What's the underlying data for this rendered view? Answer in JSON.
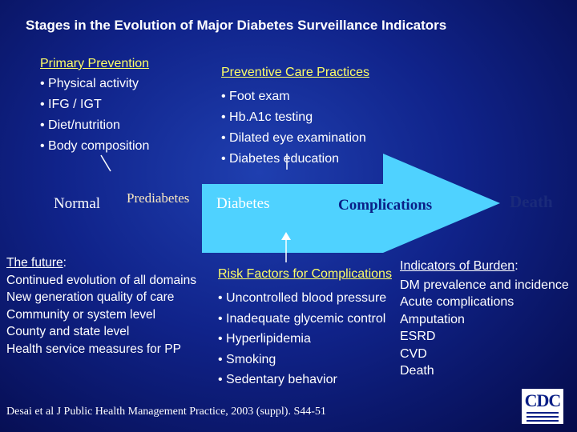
{
  "title": "Stages in the Evolution of Major Diabetes Surveillance Indicators",
  "primary_prevention": {
    "heading": "Primary Prevention",
    "items": [
      "Physical activity",
      "IFG / IGT",
      "Diet/nutrition",
      "Body composition"
    ]
  },
  "preventive_care": {
    "heading": "Preventive Care Practices",
    "items": [
      "Foot exam",
      "Hb.A1c testing",
      "Dilated eye examination",
      "Diabetes education"
    ]
  },
  "stages": {
    "normal": "Normal",
    "prediabetes": "Prediabetes",
    "diabetes": "Diabetes",
    "complications": "Complications",
    "death": "Death"
  },
  "future": {
    "heading": "The future",
    "heading_suffix": ":",
    "items": [
      "Continued evolution of all domains",
      "New generation quality of care",
      "Community or system level",
      "County and state level",
      "Health service measures for PP"
    ]
  },
  "risk_factors": {
    "heading": "Risk Factors for Complications",
    "items": [
      "Uncontrolled blood pressure",
      "Inadequate glycemic control",
      "Hyperlipidemia",
      "Smoking",
      "Sedentary behavior"
    ]
  },
  "burden": {
    "heading": "Indicators of Burden",
    "heading_suffix": ":",
    "items": [
      "DM prevalence and incidence",
      "Acute complications",
      "Amputation",
      "ESRD",
      "CVD",
      "Death"
    ]
  },
  "citation": "Desai et al J Public Health Management Practice, 2003 (suppl). S44-51",
  "logo": "CDC",
  "colors": {
    "background": "#10238a",
    "arrow": "#4fd2ff",
    "complications_text": "#0a1f86",
    "death_text": "#1a2a7a",
    "prediabetes_text": "#f8e7c0"
  }
}
